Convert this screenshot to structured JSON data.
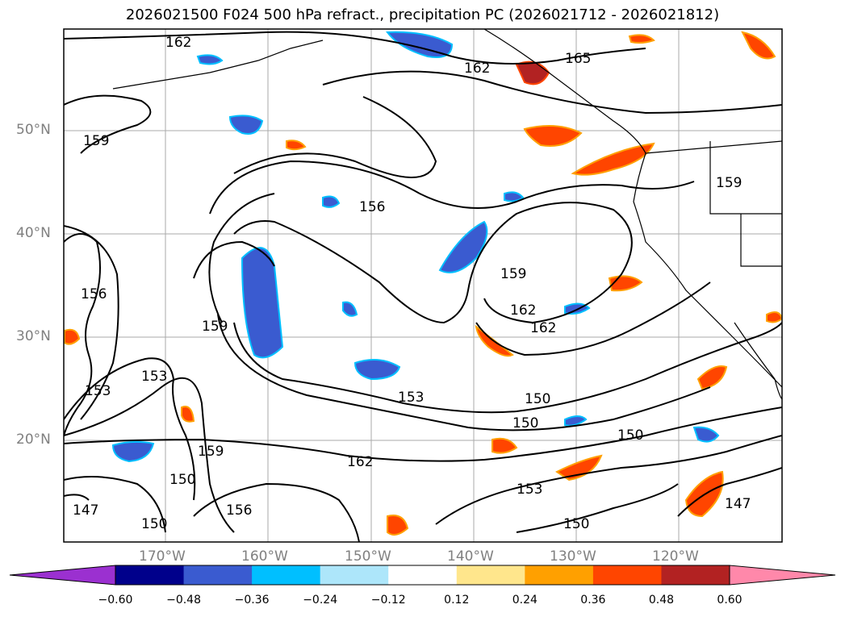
{
  "title": "2026021500 F024 500 hPa refract., precipitation PC (2026021712 - 2026021812)",
  "map": {
    "lat_ticks": [
      "50°N",
      "40°N",
      "30°N",
      "20°N"
    ],
    "lon_ticks": [
      "170°W",
      "160°W",
      "150°W",
      "140°W",
      "130°W",
      "120°W"
    ],
    "gridlines": true
  },
  "contours": {
    "color": "#000000",
    "labels": [
      "162",
      "165",
      "162",
      "159",
      "159",
      "156",
      "156",
      "159",
      "162",
      "162",
      "159",
      "153",
      "153",
      "153",
      "150",
      "150",
      "150",
      "159",
      "150",
      "162",
      "156",
      "153",
      "150",
      "150",
      "147",
      "147"
    ]
  },
  "colorbar": {
    "tick_labels": [
      "−0.60",
      "−0.48",
      "−0.36",
      "−0.24",
      "−0.12",
      "0.12",
      "0.24",
      "0.36",
      "0.48",
      "0.60"
    ],
    "colors": [
      "#9b30d0",
      "#00008b",
      "#3a5bd0",
      "#00bfff",
      "#ade6fa",
      "#ffffff",
      "#ffe68c",
      "#ffa000",
      "#ff4500",
      "#b22222",
      "#ff88aa"
    ]
  }
}
